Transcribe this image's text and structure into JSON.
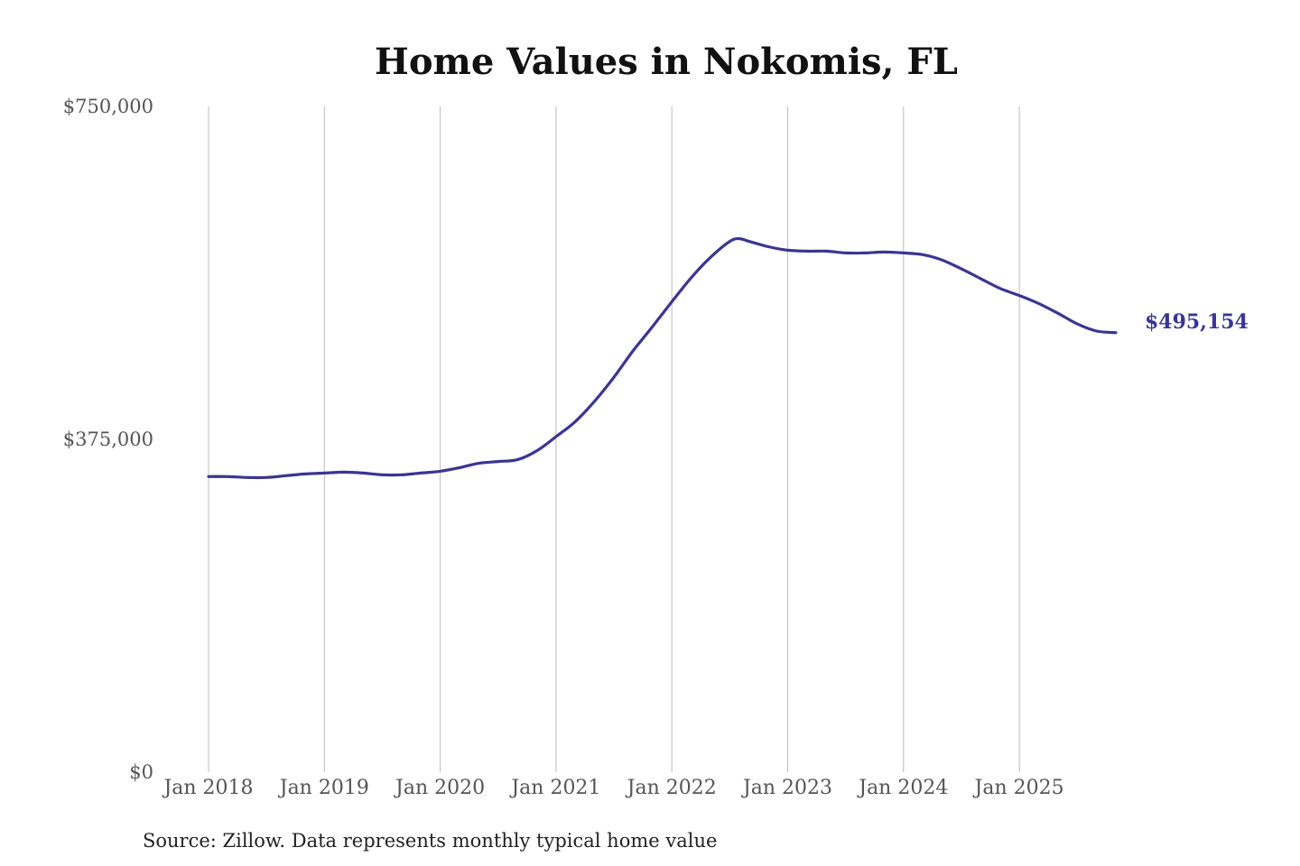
{
  "chart_data": {
    "type": "line",
    "title": "Home Values in Nokomis, FL",
    "xlabel": "",
    "ylabel": "",
    "ylim": [
      0,
      750000
    ],
    "y_ticks": [
      {
        "value": 0,
        "label": "$0"
      },
      {
        "value": 375000,
        "label": "$375,000"
      },
      {
        "value": 750000,
        "label": "$750,000"
      }
    ],
    "x_ticks": [
      {
        "value": "2018-01",
        "label": "Jan 2018"
      },
      {
        "value": "2019-01",
        "label": "Jan 2019"
      },
      {
        "value": "2020-01",
        "label": "Jan 2020"
      },
      {
        "value": "2021-01",
        "label": "Jan 2021"
      },
      {
        "value": "2022-01",
        "label": "Jan 2022"
      },
      {
        "value": "2023-01",
        "label": "Jan 2023"
      },
      {
        "value": "2024-01",
        "label": "Jan 2024"
      },
      {
        "value": "2025-01",
        "label": "Jan 2025"
      }
    ],
    "grid": {
      "vertical": true,
      "horizontal": false
    },
    "line_color": "#3b3592",
    "series": [
      {
        "x": [
          "2018-01",
          "2018-03",
          "2018-05",
          "2018-07",
          "2018-09",
          "2018-11",
          "2019-01",
          "2019-03",
          "2019-05",
          "2019-07",
          "2019-09",
          "2019-11",
          "2020-01",
          "2020-03",
          "2020-05",
          "2020-07",
          "2020-09",
          "2020-11",
          "2021-01",
          "2021-03",
          "2021-05",
          "2021-07",
          "2021-09",
          "2021-11",
          "2022-01",
          "2022-03",
          "2022-05",
          "2022-07",
          "2022-08",
          "2022-09",
          "2022-11",
          "2023-01",
          "2023-03",
          "2023-05",
          "2023-07",
          "2023-09",
          "2023-11",
          "2024-01",
          "2024-03",
          "2024-05",
          "2024-07",
          "2024-09",
          "2024-11",
          "2025-01",
          "2025-03",
          "2025-05",
          "2025-07",
          "2025-09",
          "2025-11"
        ],
        "values": [
          333000,
          333000,
          332000,
          332000,
          334000,
          336000,
          337000,
          338000,
          337000,
          335000,
          335000,
          337000,
          339000,
          343000,
          348000,
          350000,
          352000,
          362000,
          378000,
          395000,
          418000,
          445000,
          475000,
          502000,
          530000,
          557000,
          580000,
          598000,
          601000,
          598000,
          592000,
          588000,
          587000,
          587000,
          585000,
          585000,
          586000,
          585000,
          583000,
          577000,
          567000,
          556000,
          545000,
          537000,
          528000,
          517000,
          505000,
          497000,
          495154
        ]
      }
    ],
    "end_label": "$495,154",
    "source": "Source: Zillow. Data represents monthly typical home value"
  }
}
